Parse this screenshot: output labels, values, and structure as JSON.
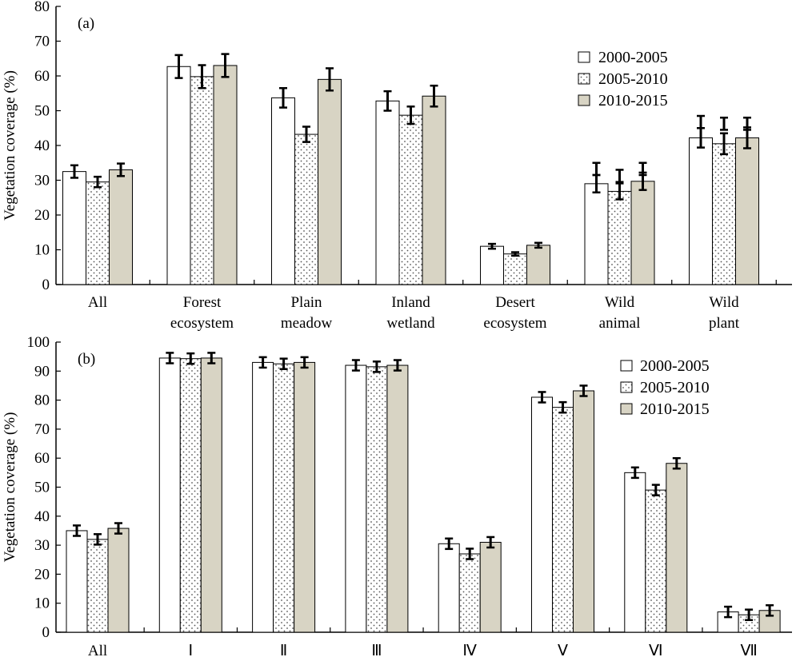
{
  "chart_data": [
    {
      "type": "bar",
      "panel_label": "(a)",
      "ylabel": "Vegetation coverage (%)",
      "xlabel": "",
      "ylim": [
        0,
        80
      ],
      "yticks": [
        "0",
        "10",
        "20",
        "30",
        "40",
        "50",
        "60",
        "70",
        "80"
      ],
      "categories": [
        [
          "All"
        ],
        [
          "Forest",
          "ecosystem"
        ],
        [
          "Plain",
          "meadow"
        ],
        [
          "Inland",
          "wetland"
        ],
        [
          "Desert",
          "ecosystem"
        ],
        [
          "Wild",
          "animal"
        ],
        [
          "Wild",
          "plant"
        ]
      ],
      "legend_position": "top-right",
      "series": [
        {
          "name": "2000-2005",
          "pattern": "white",
          "values": [
            32.5,
            62.7,
            53.7,
            52.8,
            11.0,
            29.0,
            42.2
          ],
          "errors": [
            1.8,
            3.3,
            2.8,
            2.8,
            0.7,
            2.5,
            2.8
          ]
        },
        {
          "name": "2005-2010",
          "pattern": "dots",
          "values": [
            29.5,
            59.8,
            43.2,
            48.7,
            8.8,
            26.8,
            40.5
          ],
          "errors": [
            1.5,
            3.3,
            2.2,
            2.5,
            0.5,
            2.3,
            3.0
          ]
        },
        {
          "name": "2010-2015",
          "pattern": "beige",
          "values": [
            33.0,
            63.0,
            59.0,
            54.2,
            11.3,
            29.7,
            42.2
          ],
          "errors": [
            1.8,
            3.3,
            3.2,
            3.0,
            0.7,
            2.5,
            3.0
          ]
        }
      ],
      "upper_error_marks": [
        null,
        null,
        null,
        null,
        null,
        [
          31.5,
          29.5,
          31.5
        ],
        [
          45.0,
          44.5,
          44.5
        ]
      ]
    },
    {
      "type": "bar",
      "panel_label": "(b)",
      "ylabel": "Vegetation coverage (%)",
      "xlabel": "",
      "ylim": [
        0,
        100
      ],
      "yticks": [
        "0",
        "10",
        "20",
        "30",
        "40",
        "50",
        "60",
        "70",
        "80",
        "90",
        "100"
      ],
      "categories": [
        [
          "All"
        ],
        [
          "Ⅰ"
        ],
        [
          "Ⅱ"
        ],
        [
          "Ⅲ"
        ],
        [
          "Ⅳ"
        ],
        [
          "Ⅴ"
        ],
        [
          "Ⅵ"
        ],
        [
          "Ⅶ"
        ]
      ],
      "legend_position": "top-right",
      "series": [
        {
          "name": "2000-2005",
          "pattern": "white",
          "values": [
            35.0,
            94.5,
            93.0,
            92.0,
            30.5,
            81.0,
            55.0,
            7.0
          ],
          "errors": [
            1.8,
            1.8,
            1.8,
            1.8,
            1.8,
            1.8,
            1.8,
            1.8
          ]
        },
        {
          "name": "2005-2010",
          "pattern": "dots",
          "values": [
            32.0,
            94.3,
            92.5,
            91.5,
            27.0,
            77.5,
            49.0,
            6.0
          ],
          "errors": [
            1.8,
            1.8,
            1.8,
            1.8,
            1.8,
            1.8,
            1.8,
            1.8
          ]
        },
        {
          "name": "2010-2015",
          "pattern": "beige",
          "values": [
            35.8,
            94.5,
            93.0,
            92.0,
            31.0,
            83.2,
            58.2,
            7.5
          ],
          "errors": [
            1.8,
            1.8,
            1.8,
            1.8,
            1.8,
            1.8,
            1.8,
            1.8
          ]
        }
      ]
    }
  ],
  "colors": {
    "bar_white": "#ffffff",
    "bar_beige": "#d8d4c4",
    "dots": "#555555",
    "axis": "#000000"
  }
}
